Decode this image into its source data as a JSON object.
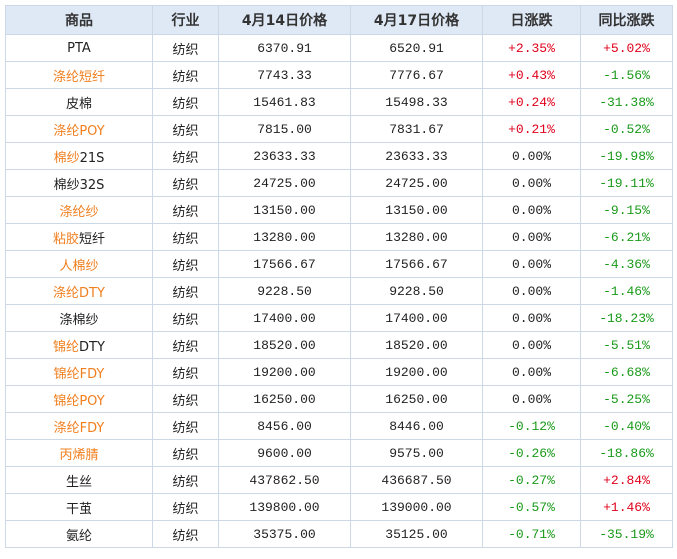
{
  "table": {
    "columns": [
      "商品",
      "行业",
      "4月14日价格",
      "4月17日价格",
      "日涨跌",
      "同比涨跌"
    ],
    "rows": [
      {
        "name": [
          "PTA"
        ],
        "orange": [
          false
        ],
        "industry": "纺织",
        "price_a": "6370.91",
        "price_b": "6520.91",
        "daily": "+2.35%",
        "yoy": "+5.02%"
      },
      {
        "name": [
          "涤纶短纤"
        ],
        "orange": [
          true
        ],
        "industry": "纺织",
        "price_a": "7743.33",
        "price_b": "7776.67",
        "daily": "+0.43%",
        "yoy": "-1.56%"
      },
      {
        "name": [
          "皮棉"
        ],
        "orange": [
          false
        ],
        "industry": "纺织",
        "price_a": "15461.83",
        "price_b": "15498.33",
        "daily": "+0.24%",
        "yoy": "-31.38%"
      },
      {
        "name": [
          "涤纶POY"
        ],
        "orange": [
          true
        ],
        "industry": "纺织",
        "price_a": "7815.00",
        "price_b": "7831.67",
        "daily": "+0.21%",
        "yoy": "-0.52%"
      },
      {
        "name": [
          "棉纱",
          "21S"
        ],
        "orange": [
          true,
          false
        ],
        "industry": "纺织",
        "price_a": "23633.33",
        "price_b": "23633.33",
        "daily": "0.00%",
        "yoy": "-19.98%"
      },
      {
        "name": [
          "棉纱32S"
        ],
        "orange": [
          false
        ],
        "industry": "纺织",
        "price_a": "24725.00",
        "price_b": "24725.00",
        "daily": "0.00%",
        "yoy": "-19.11%"
      },
      {
        "name": [
          "涤纶纱"
        ],
        "orange": [
          true
        ],
        "industry": "纺织",
        "price_a": "13150.00",
        "price_b": "13150.00",
        "daily": "0.00%",
        "yoy": "-9.15%"
      },
      {
        "name": [
          "粘胶",
          "短纤"
        ],
        "orange": [
          true,
          false
        ],
        "industry": "纺织",
        "price_a": "13280.00",
        "price_b": "13280.00",
        "daily": "0.00%",
        "yoy": "-6.21%"
      },
      {
        "name": [
          "人棉纱"
        ],
        "orange": [
          true
        ],
        "industry": "纺织",
        "price_a": "17566.67",
        "price_b": "17566.67",
        "daily": "0.00%",
        "yoy": "-4.36%"
      },
      {
        "name": [
          "涤纶DTY"
        ],
        "orange": [
          true
        ],
        "industry": "纺织",
        "price_a": "9228.50",
        "price_b": "9228.50",
        "daily": "0.00%",
        "yoy": "-1.46%"
      },
      {
        "name": [
          "涤棉纱"
        ],
        "orange": [
          false
        ],
        "industry": "纺织",
        "price_a": "17400.00",
        "price_b": "17400.00",
        "daily": "0.00%",
        "yoy": "-18.23%"
      },
      {
        "name": [
          "锦纶",
          "DTY"
        ],
        "orange": [
          true,
          false
        ],
        "industry": "纺织",
        "price_a": "18520.00",
        "price_b": "18520.00",
        "daily": "0.00%",
        "yoy": "-5.51%"
      },
      {
        "name": [
          "锦纶FDY"
        ],
        "orange": [
          true
        ],
        "industry": "纺织",
        "price_a": "19200.00",
        "price_b": "19200.00",
        "daily": "0.00%",
        "yoy": "-6.68%"
      },
      {
        "name": [
          "锦纶POY"
        ],
        "orange": [
          true
        ],
        "industry": "纺织",
        "price_a": "16250.00",
        "price_b": "16250.00",
        "daily": "0.00%",
        "yoy": "-5.25%"
      },
      {
        "name": [
          "涤纶FDY"
        ],
        "orange": [
          true
        ],
        "industry": "纺织",
        "price_a": "8456.00",
        "price_b": "8446.00",
        "daily": "-0.12%",
        "yoy": "-0.40%"
      },
      {
        "name": [
          "丙烯腈"
        ],
        "orange": [
          true
        ],
        "industry": "纺织",
        "price_a": "9600.00",
        "price_b": "9575.00",
        "daily": "-0.26%",
        "yoy": "-18.86%"
      },
      {
        "name": [
          "生丝"
        ],
        "orange": [
          false
        ],
        "industry": "纺织",
        "price_a": "437862.50",
        "price_b": "436687.50",
        "daily": "-0.27%",
        "yoy": "+2.84%"
      },
      {
        "name": [
          "干茧"
        ],
        "orange": [
          false
        ],
        "industry": "纺织",
        "price_a": "139800.00",
        "price_b": "139000.00",
        "daily": "-0.57%",
        "yoy": "+1.46%"
      },
      {
        "name": [
          "氨纶"
        ],
        "orange": [
          false
        ],
        "industry": "纺织",
        "price_a": "35375.00",
        "price_b": "35125.00",
        "daily": "-0.71%",
        "yoy": "-35.19%"
      }
    ]
  }
}
